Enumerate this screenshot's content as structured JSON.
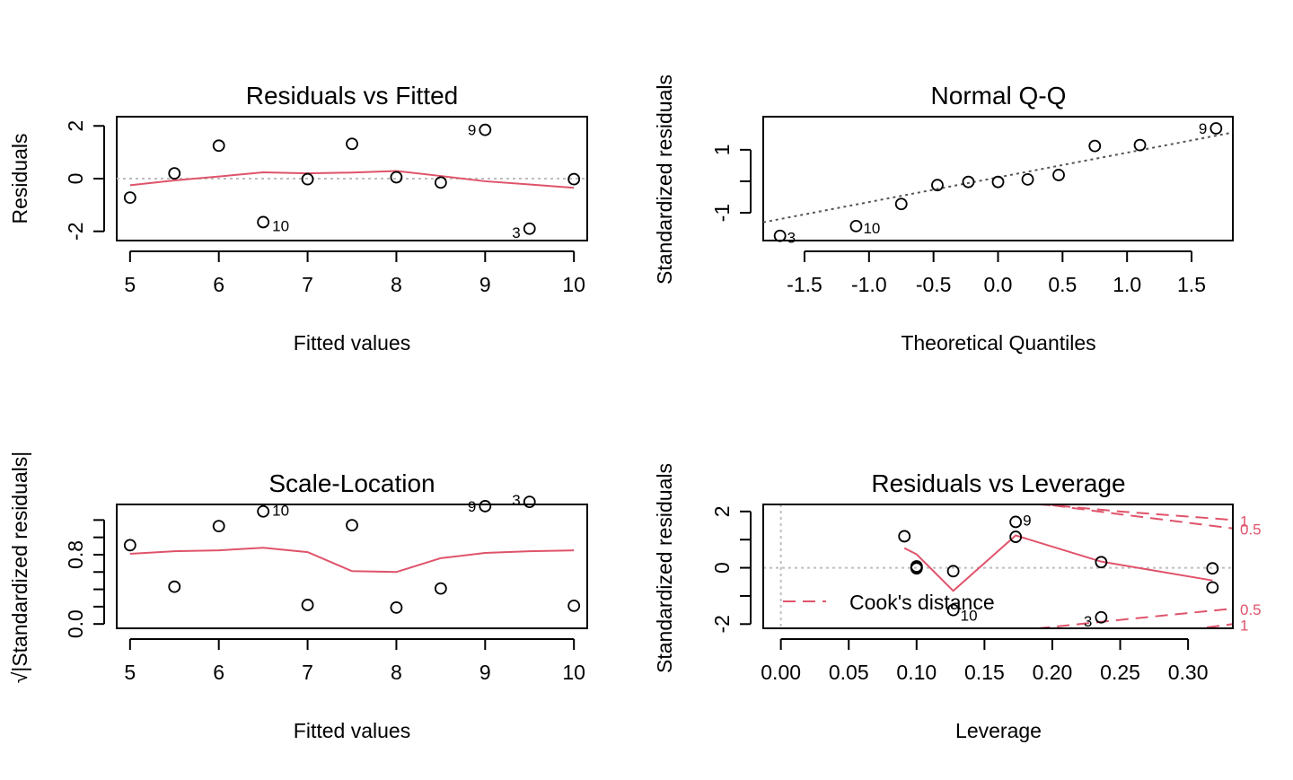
{
  "chart_data": [
    {
      "type": "scatter",
      "title": "Residuals vs Fitted",
      "xlabel": "Fitted values",
      "ylabel": "Residuals",
      "xlim": [
        4.85,
        10.15
      ],
      "ylim": [
        -2.35,
        2.35
      ],
      "xticks": [
        "5",
        "6",
        "7",
        "8",
        "9",
        "10"
      ],
      "xtick_values": [
        5,
        6,
        7,
        8,
        9,
        10
      ],
      "yticks": [
        "-2",
        "0",
        "2"
      ],
      "ytick_values": [
        -2,
        0,
        2
      ],
      "points": [
        {
          "x": 5.0,
          "y": -0.72,
          "label": ""
        },
        {
          "x": 5.5,
          "y": 0.2,
          "label": ""
        },
        {
          "x": 6.0,
          "y": 1.25,
          "label": ""
        },
        {
          "x": 6.5,
          "y": -1.65,
          "label": "10"
        },
        {
          "x": 7.0,
          "y": -0.02,
          "label": ""
        },
        {
          "x": 7.5,
          "y": 1.32,
          "label": ""
        },
        {
          "x": 8.0,
          "y": 0.05,
          "label": ""
        },
        {
          "x": 8.5,
          "y": -0.15,
          "label": ""
        },
        {
          "x": 9.0,
          "y": 1.85,
          "label": "9"
        },
        {
          "x": 9.5,
          "y": -1.9,
          "label": "3"
        },
        {
          "x": 10.0,
          "y": -0.02,
          "label": ""
        }
      ],
      "smooth": [
        [
          5.0,
          -0.25
        ],
        [
          5.5,
          -0.07
        ],
        [
          6.0,
          0.08
        ],
        [
          6.5,
          0.24
        ],
        [
          7.0,
          0.2
        ],
        [
          7.5,
          0.23
        ],
        [
          8.0,
          0.29
        ],
        [
          8.5,
          0.1
        ],
        [
          9.0,
          -0.1
        ],
        [
          9.5,
          -0.22
        ],
        [
          10.0,
          -0.35
        ]
      ],
      "reference_line": {
        "y": 0
      }
    },
    {
      "type": "scatter",
      "title": "Normal Q-Q",
      "xlabel": "Theoretical Quantiles",
      "ylabel": "Standardized residuals",
      "xlim": [
        -1.82,
        1.82
      ],
      "ylim": [
        -1.88,
        2.05
      ],
      "xticks": [
        "-1.5",
        "-1.0",
        "-0.5",
        "0.0",
        "0.5",
        "1.0",
        "1.5"
      ],
      "xtick_values": [
        -1.5,
        -1.0,
        -0.5,
        0.0,
        0.5,
        1.0,
        1.5
      ],
      "yticks": [
        "-1",
        "0",
        "1"
      ],
      "ytick_values": [
        -1,
        0,
        1
      ],
      "ytick_show_label": [
        true,
        false,
        true
      ],
      "points": [
        {
          "x": -1.69,
          "y": -1.73,
          "label": "3"
        },
        {
          "x": -1.1,
          "y": -1.42,
          "label": "10"
        },
        {
          "x": -0.75,
          "y": -0.72,
          "label": ""
        },
        {
          "x": -0.47,
          "y": -0.12,
          "label": ""
        },
        {
          "x": -0.23,
          "y": -0.02,
          "label": ""
        },
        {
          "x": 0.0,
          "y": -0.02,
          "label": ""
        },
        {
          "x": 0.23,
          "y": 0.06,
          "label": ""
        },
        {
          "x": 0.47,
          "y": 0.2,
          "label": ""
        },
        {
          "x": 0.75,
          "y": 1.12,
          "label": ""
        },
        {
          "x": 1.1,
          "y": 1.15,
          "label": ""
        },
        {
          "x": 1.69,
          "y": 1.68,
          "label": "9"
        }
      ],
      "qq_line": [
        [
          -1.82,
          -1.3
        ],
        [
          1.82,
          1.55
        ]
      ]
    },
    {
      "type": "scatter",
      "title": "Scale-Location",
      "xlabel": "Fitted values",
      "ylabel": "√|Standardized residuals|",
      "xlim": [
        4.85,
        10.15
      ],
      "ylim": [
        -0.05,
        1.38
      ],
      "xticks": [
        "5",
        "6",
        "7",
        "8",
        "9",
        "10"
      ],
      "xtick_values": [
        5,
        6,
        7,
        8,
        9,
        10
      ],
      "yticks": [
        "0.0",
        "0.8"
      ],
      "ytick_values": [
        0.0,
        0.8
      ],
      "ytick_marks": [
        0.0,
        0.4,
        0.8,
        1.2
      ],
      "minor_tick_values": [
        0.2,
        0.6,
        1.0
      ],
      "points": [
        {
          "x": 5.0,
          "y": 0.91,
          "label": ""
        },
        {
          "x": 5.5,
          "y": 0.43,
          "label": ""
        },
        {
          "x": 6.0,
          "y": 1.13,
          "label": ""
        },
        {
          "x": 6.5,
          "y": 1.3,
          "label": "10"
        },
        {
          "x": 7.0,
          "y": 0.22,
          "label": ""
        },
        {
          "x": 7.5,
          "y": 1.14,
          "label": ""
        },
        {
          "x": 8.0,
          "y": 0.19,
          "label": ""
        },
        {
          "x": 8.5,
          "y": 0.41,
          "label": ""
        },
        {
          "x": 9.0,
          "y": 1.36,
          "label": "9"
        },
        {
          "x": 9.5,
          "y": 1.41,
          "label": "3"
        },
        {
          "x": 10.0,
          "y": 0.21,
          "label": ""
        }
      ],
      "smooth": [
        [
          5.0,
          0.81
        ],
        [
          5.5,
          0.84
        ],
        [
          6.0,
          0.85
        ],
        [
          6.5,
          0.88
        ],
        [
          7.0,
          0.83
        ],
        [
          7.5,
          0.61
        ],
        [
          8.0,
          0.6
        ],
        [
          8.5,
          0.76
        ],
        [
          9.0,
          0.82
        ],
        [
          9.5,
          0.84
        ],
        [
          10.0,
          0.85
        ]
      ]
    },
    {
      "type": "scatter",
      "title": "Residuals vs Leverage",
      "xlabel": "Leverage",
      "ylabel": "Standardized residuals",
      "xlim": [
        -0.013,
        0.333
      ],
      "ylim": [
        -2.15,
        2.25
      ],
      "xticks": [
        "0.00",
        "0.05",
        "0.10",
        "0.15",
        "0.20",
        "0.25",
        "0.30"
      ],
      "xtick_values": [
        0.0,
        0.05,
        0.1,
        0.15,
        0.2,
        0.25,
        0.3
      ],
      "yticks": [
        "-2",
        "0",
        "2"
      ],
      "ytick_values": [
        -2,
        0,
        2
      ],
      "ytick_marks": [
        -2,
        -1,
        0,
        1,
        2
      ],
      "points": [
        {
          "x": 0.091,
          "y": 1.12,
          "label": ""
        },
        {
          "x": 0.1,
          "y": 0.02,
          "label": ""
        },
        {
          "x": 0.1,
          "y": -0.02,
          "label": ""
        },
        {
          "x": 0.1,
          "y": 0.05,
          "label": ""
        },
        {
          "x": 0.127,
          "y": -0.12,
          "label": ""
        },
        {
          "x": 0.127,
          "y": -1.5,
          "label": "10"
        },
        {
          "x": 0.173,
          "y": 1.63,
          "label": "9"
        },
        {
          "x": 0.173,
          "y": 1.1,
          "label": ""
        },
        {
          "x": 0.236,
          "y": 0.2,
          "label": ""
        },
        {
          "x": 0.236,
          "y": -1.76,
          "label": "3"
        },
        {
          "x": 0.318,
          "y": -0.02,
          "label": ""
        },
        {
          "x": 0.318,
          "y": -0.7,
          "label": ""
        }
      ],
      "smooth": [
        [
          0.091,
          0.7
        ],
        [
          0.1,
          0.48
        ],
        [
          0.127,
          -0.82
        ],
        [
          0.173,
          1.15
        ],
        [
          0.236,
          0.22
        ],
        [
          0.318,
          -0.45
        ]
      ],
      "cooks_contours": [
        {
          "label": "1",
          "side": "upper",
          "points": [
            [
              0.175,
              2.3
            ],
            [
              0.2,
              2.22
            ],
            [
              0.25,
              2.0
            ],
            [
              0.333,
              1.7
            ]
          ]
        },
        {
          "label": "0.5",
          "side": "upper",
          "points": [
            [
              0.2,
              2.22
            ],
            [
              0.25,
              1.9
            ],
            [
              0.333,
              1.4
            ]
          ]
        },
        {
          "label": "0.5",
          "side": "lower",
          "points": [
            [
              0.16,
              -2.3
            ],
            [
              0.2,
              -2.1
            ],
            [
              0.25,
              -1.85
            ],
            [
              0.333,
              -1.45
            ]
          ]
        },
        {
          "label": "1",
          "side": "lower",
          "points": [
            [
              0.285,
              -2.3
            ],
            [
              0.333,
              -2.0
            ]
          ]
        }
      ],
      "legend": {
        "label": "Cook's distance",
        "position": "bottom-left"
      }
    }
  ]
}
